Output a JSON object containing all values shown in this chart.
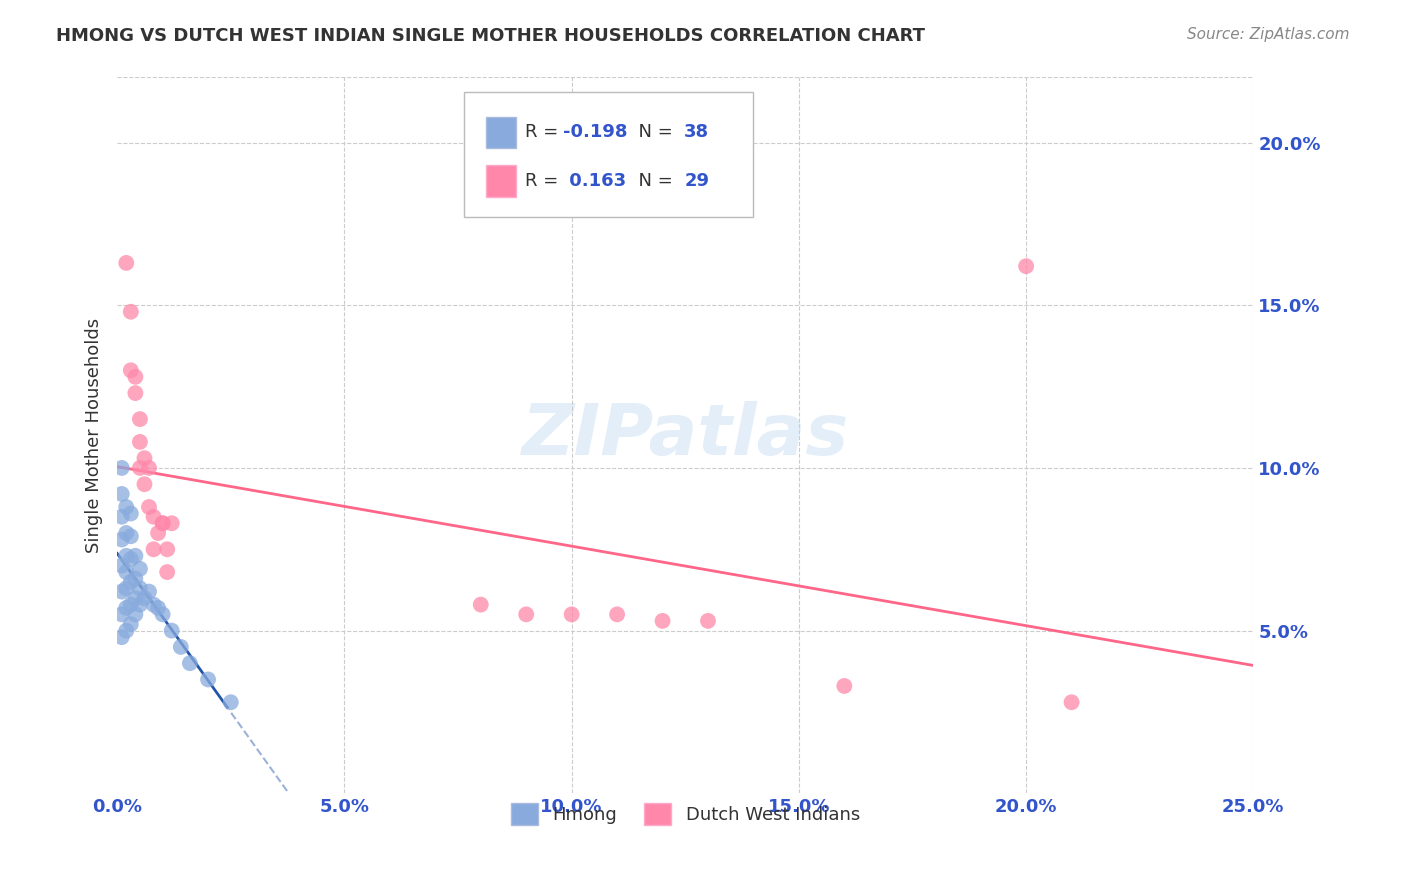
{
  "title": "HMONG VS DUTCH WEST INDIAN SINGLE MOTHER HOUSEHOLDS CORRELATION CHART",
  "source": "Source: ZipAtlas.com",
  "ylabel": "Single Mother Households",
  "xlim": [
    0.0,
    0.25
  ],
  "ylim": [
    0.0,
    0.22
  ],
  "background_color": "#ffffff",
  "watermark": "ZIPatlas",
  "legend_R_hmong": "-0.198",
  "legend_N_hmong": "38",
  "legend_R_dutch": "0.163",
  "legend_N_dutch": "29",
  "hmong_color": "#88AADD",
  "dutch_color": "#FF88AA",
  "hmong_line_color": "#2255AA",
  "dutch_line_color": "#FF6688",
  "blue_text_color": "#3355CC",
  "hmong_x": [
    0.001,
    0.001,
    0.001,
    0.001,
    0.001,
    0.001,
    0.001,
    0.001,
    0.002,
    0.002,
    0.002,
    0.002,
    0.002,
    0.002,
    0.002,
    0.003,
    0.003,
    0.003,
    0.003,
    0.003,
    0.003,
    0.004,
    0.004,
    0.004,
    0.004,
    0.005,
    0.005,
    0.005,
    0.006,
    0.007,
    0.008,
    0.009,
    0.01,
    0.012,
    0.014,
    0.016,
    0.02,
    0.025
  ],
  "hmong_y": [
    0.048,
    0.055,
    0.062,
    0.07,
    0.078,
    0.085,
    0.092,
    0.1,
    0.05,
    0.057,
    0.063,
    0.068,
    0.073,
    0.08,
    0.088,
    0.052,
    0.058,
    0.065,
    0.072,
    0.079,
    0.086,
    0.055,
    0.06,
    0.066,
    0.073,
    0.058,
    0.063,
    0.069,
    0.06,
    0.062,
    0.058,
    0.057,
    0.055,
    0.05,
    0.045,
    0.04,
    0.035,
    0.028
  ],
  "dutch_x": [
    0.002,
    0.003,
    0.003,
    0.004,
    0.004,
    0.005,
    0.005,
    0.005,
    0.006,
    0.006,
    0.007,
    0.007,
    0.008,
    0.008,
    0.009,
    0.01,
    0.01,
    0.011,
    0.011,
    0.012,
    0.08,
    0.09,
    0.1,
    0.11,
    0.12,
    0.13,
    0.16,
    0.2,
    0.21
  ],
  "dutch_y": [
    0.163,
    0.148,
    0.13,
    0.128,
    0.123,
    0.115,
    0.108,
    0.1,
    0.103,
    0.095,
    0.1,
    0.088,
    0.085,
    0.075,
    0.08,
    0.083,
    0.083,
    0.075,
    0.068,
    0.083,
    0.058,
    0.055,
    0.055,
    0.055,
    0.053,
    0.053,
    0.033,
    0.162,
    0.028
  ]
}
